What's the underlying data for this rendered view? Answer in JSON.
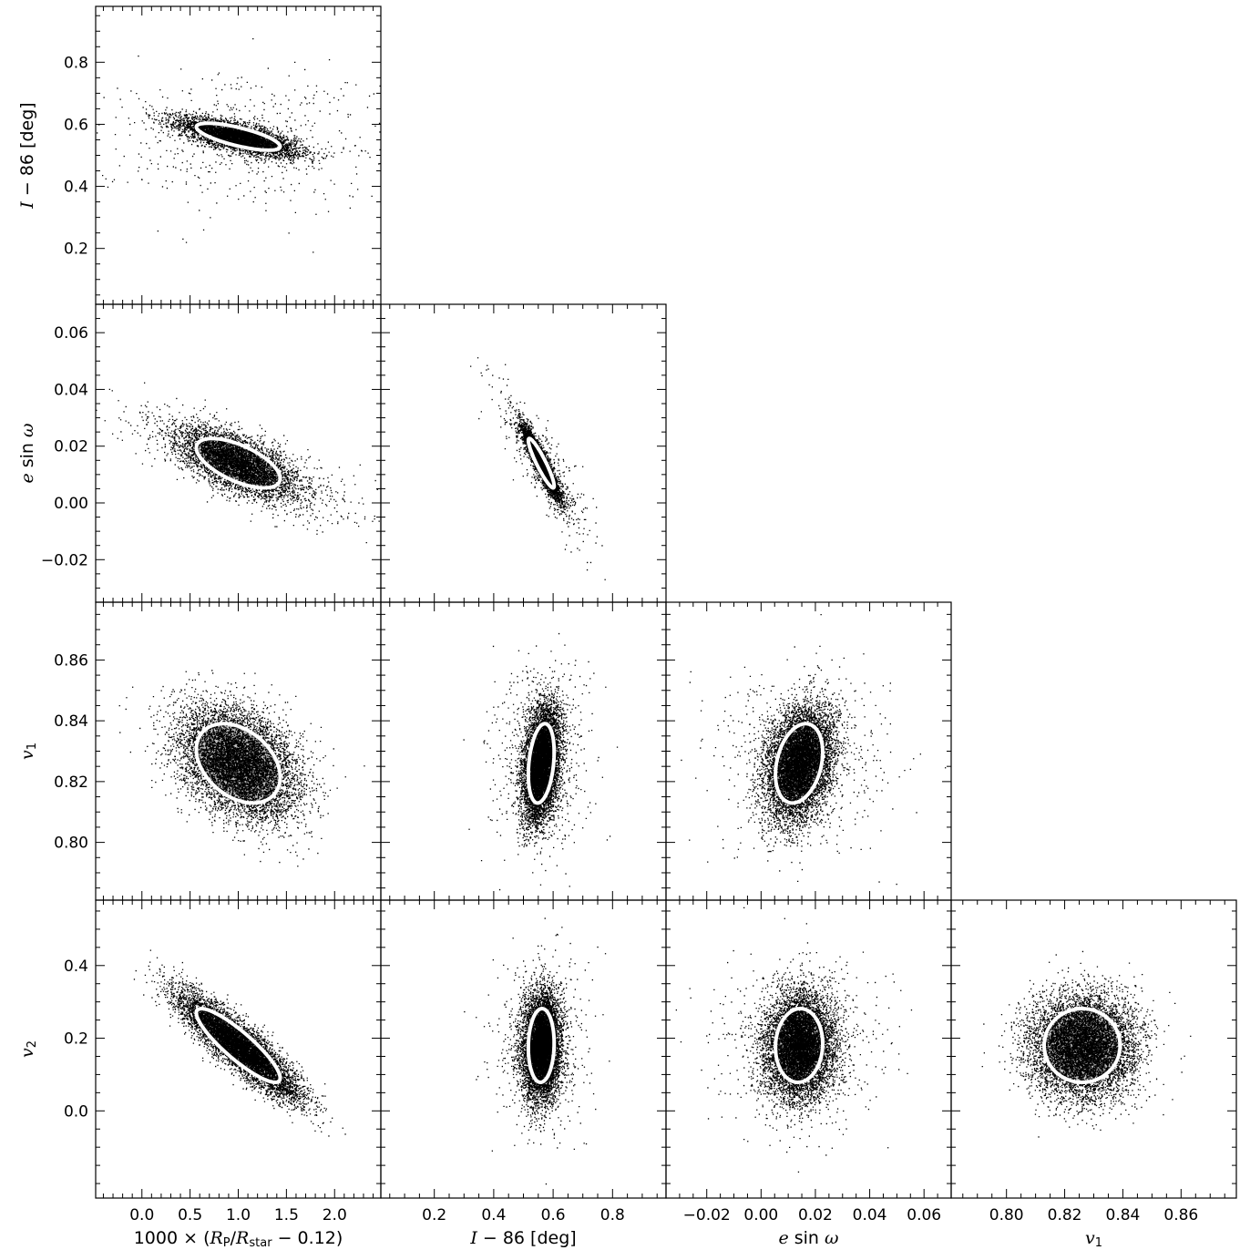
{
  "chart_data": {
    "type": "scatter",
    "layout": "corner-plot",
    "contour_color": "#ffffff",
    "point_color": "#000000",
    "parameters": [
      {
        "key": "rp",
        "label_parts": [
          {
            "t": "1000 × (",
            "s": "upright"
          },
          {
            "t": "R",
            "s": "ital"
          },
          {
            "t": "P",
            "s": "sub"
          },
          {
            "t": "/",
            "s": "upright"
          },
          {
            "t": "R",
            "s": "ital"
          },
          {
            "t": "star",
            "s": "sub"
          },
          {
            "t": " − 0.12)",
            "s": "upright"
          }
        ],
        "range": [
          -0.48,
          2.48
        ],
        "ticks": [
          0.0,
          0.5,
          1.0,
          1.5,
          2.0
        ],
        "tick_labels": [
          "0.0",
          "0.5",
          "1.0",
          "1.5",
          "2.0"
        ],
        "minor_step": 0.1,
        "mean": 1.0,
        "sigma": 0.3
      },
      {
        "key": "inc",
        "label_parts": [
          {
            "t": "I",
            "s": "ital"
          },
          {
            "t": " − 86 [deg]",
            "s": "upright"
          }
        ],
        "range": [
          0.02,
          0.98
        ],
        "ticks": [
          0.2,
          0.4,
          0.6,
          0.8
        ],
        "tick_labels": [
          "0.2",
          "0.4",
          "0.6",
          "0.8"
        ],
        "minor_step": 0.05,
        "mean": 0.56,
        "sigma": 0.03
      },
      {
        "key": "esinw",
        "label_parts": [
          {
            "t": "e",
            "s": "ital"
          },
          {
            "t": " sin ",
            "s": "upright"
          },
          {
            "t": "ω",
            "s": "ital"
          }
        ],
        "range": [
          -0.035,
          0.07
        ],
        "ticks": [
          -0.02,
          0.0,
          0.02,
          0.04,
          0.06
        ],
        "tick_labels": [
          "−0.02",
          "0.00",
          "0.02",
          "0.04",
          "0.06"
        ],
        "minor_step": 0.005,
        "mean": 0.014,
        "sigma": 0.006
      },
      {
        "key": "v1",
        "label_parts": [
          {
            "t": "v",
            "s": "ital"
          },
          {
            "t": "1",
            "s": "sub"
          }
        ],
        "range": [
          0.781,
          0.879
        ],
        "ticks": [
          0.8,
          0.82,
          0.84,
          0.86
        ],
        "tick_labels": [
          "0.80",
          "0.82",
          "0.84",
          "0.86"
        ],
        "minor_step": 0.005,
        "mean": 0.826,
        "sigma": 0.009
      },
      {
        "key": "v2",
        "label_parts": [
          {
            "t": "v",
            "s": "ital"
          },
          {
            "t": "2",
            "s": "sub"
          }
        ],
        "range": [
          -0.24,
          0.58
        ],
        "ticks": [
          0.0,
          0.2,
          0.4
        ],
        "tick_labels": [
          "0.0",
          "0.2",
          "0.4"
        ],
        "minor_step": 0.05,
        "mean": 0.18,
        "sigma": 0.07
      }
    ],
    "panels": [
      {
        "x": 0,
        "y": 1,
        "corr": -0.72,
        "n": 5200,
        "outliers": 520
      },
      {
        "x": 0,
        "y": 2,
        "corr": -0.62,
        "n": 5200,
        "outliers": 520
      },
      {
        "x": 1,
        "y": 2,
        "corr": -0.92,
        "n": 5200,
        "outliers": 520
      },
      {
        "x": 0,
        "y": 3,
        "corr": -0.35,
        "n": 8000,
        "outliers": 0
      },
      {
        "x": 1,
        "y": 3,
        "corr": 0.28,
        "n": 8000,
        "outliers": 700
      },
      {
        "x": 2,
        "y": 3,
        "corr": 0.28,
        "n": 8000,
        "outliers": 700
      },
      {
        "x": 0,
        "y": 4,
        "corr": -0.88,
        "n": 8000,
        "outliers": 0
      },
      {
        "x": 1,
        "y": 4,
        "corr": 0.06,
        "n": 8000,
        "outliers": 700
      },
      {
        "x": 2,
        "y": 4,
        "corr": 0.05,
        "n": 8000,
        "outliers": 700
      },
      {
        "x": 3,
        "y": 4,
        "corr": 0.0,
        "n": 8000,
        "outliers": 0
      }
    ]
  }
}
